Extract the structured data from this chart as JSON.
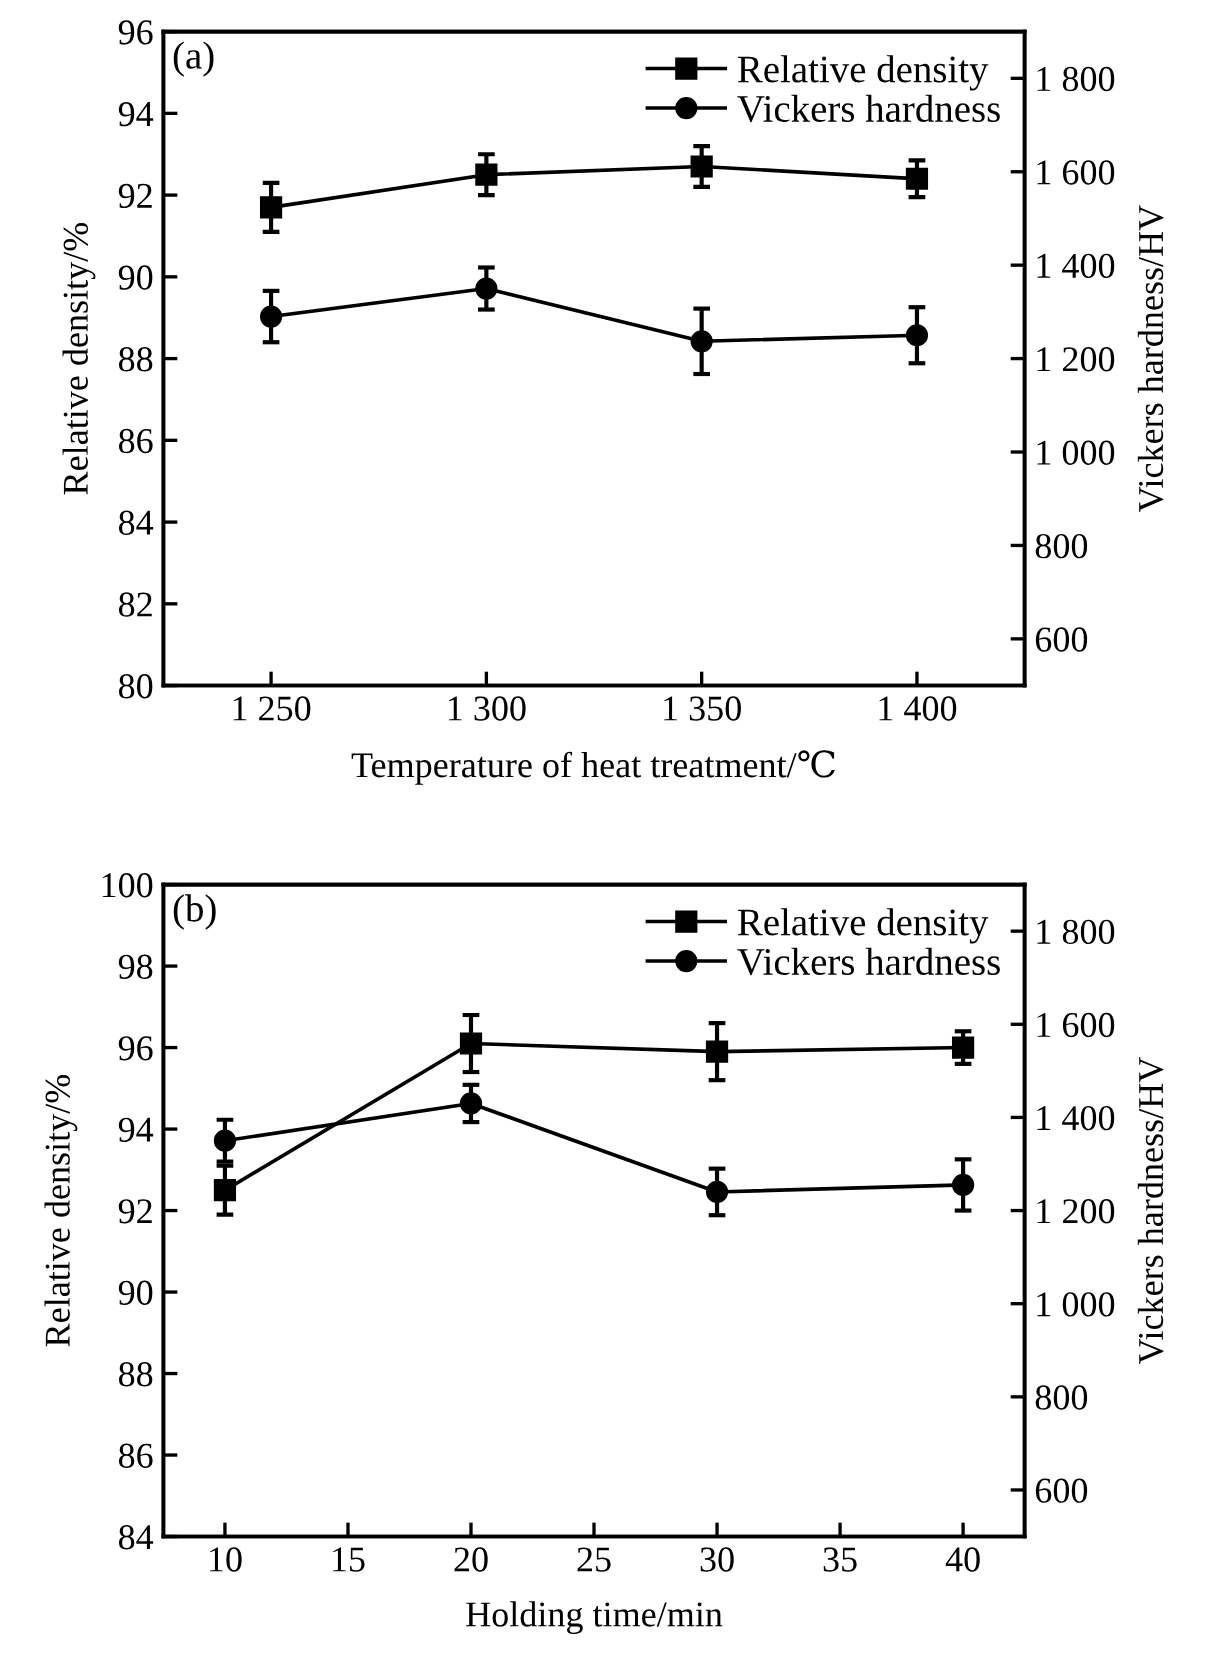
{
  "chart_data": [
    {
      "type": "line",
      "xlabel": "Temperature of heat treatment/℃",
      "ylabel": "Relative density/%",
      "y2label": "Vickers hardness/HV",
      "annotations": [
        "(a)"
      ],
      "x": [
        1250,
        1300,
        1350,
        1400
      ],
      "xlim": [
        1225,
        1425
      ],
      "xticks": [
        {
          "value": 1250,
          "label": "1 250"
        },
        {
          "value": 1300,
          "label": "1 300"
        },
        {
          "value": 1350,
          "label": "1 350"
        },
        {
          "value": 1400,
          "label": "1 400"
        }
      ],
      "ylim": [
        80,
        96
      ],
      "yticks": [
        80,
        82,
        84,
        86,
        88,
        90,
        92,
        94,
        96
      ],
      "y2lim": [
        500,
        1900
      ],
      "y2ticks": [
        600,
        800,
        {
          "value": 1000,
          "label": "1 000"
        },
        {
          "value": 1200,
          "label": "1 200"
        },
        {
          "value": 1400,
          "label": "1 400"
        },
        {
          "value": 1600,
          "label": "1 600"
        },
        {
          "value": 1800,
          "label": "1 800"
        }
      ],
      "legend": "top right",
      "grid": false,
      "line_style": "solid",
      "series": [
        {
          "name": "Relative density",
          "color": "#000000",
          "marker": "square",
          "values": [
            91.7,
            92.5,
            92.7,
            92.4
          ],
          "errors": [
            0.6,
            0.5,
            0.5,
            0.45
          ]
        },
        {
          "name": "Vickers hardness",
          "color": "#000000",
          "marker": "circle",
          "axis": "y2",
          "values": [
            1290,
            1350,
            1237,
            1250
          ],
          "errors": [
            55,
            45,
            70,
            60
          ]
        }
      ]
    },
    {
      "type": "line",
      "xlabel": "Holding time/min",
      "ylabel": "Relative density/%",
      "y2label": "Vickers hardness/HV",
      "annotations": [
        "(b)"
      ],
      "x": [
        10,
        20,
        30,
        40
      ],
      "xlim": [
        7.5,
        42.5
      ],
      "xticks": [
        10,
        15,
        20,
        25,
        30,
        35,
        40
      ],
      "ylim": [
        84,
        100
      ],
      "yticks": [
        84,
        86,
        88,
        90,
        92,
        94,
        96,
        98,
        100
      ],
      "y2lim": [
        500,
        1900
      ],
      "y2ticks": [
        600,
        800,
        {
          "value": 1000,
          "label": "1 000"
        },
        {
          "value": 1200,
          "label": "1 200"
        },
        {
          "value": 1400,
          "label": "1 400"
        },
        {
          "value": 1600,
          "label": "1 600"
        },
        {
          "value": 1800,
          "label": "1 800"
        }
      ],
      "legend": "top right",
      "grid": false,
      "line_style": "solid",
      "series": [
        {
          "name": "Relative density",
          "color": "#000000",
          "marker": "square",
          "values": [
            92.5,
            96.1,
            95.9,
            96.0
          ],
          "errors": [
            0.6,
            0.7,
            0.7,
            0.4
          ]
        },
        {
          "name": "Vickers hardness",
          "color": "#000000",
          "marker": "circle",
          "axis": "y2",
          "values": [
            1350,
            1430,
            1240,
            1255
          ],
          "errors": [
            45,
            40,
            50,
            55
          ]
        }
      ]
    }
  ]
}
